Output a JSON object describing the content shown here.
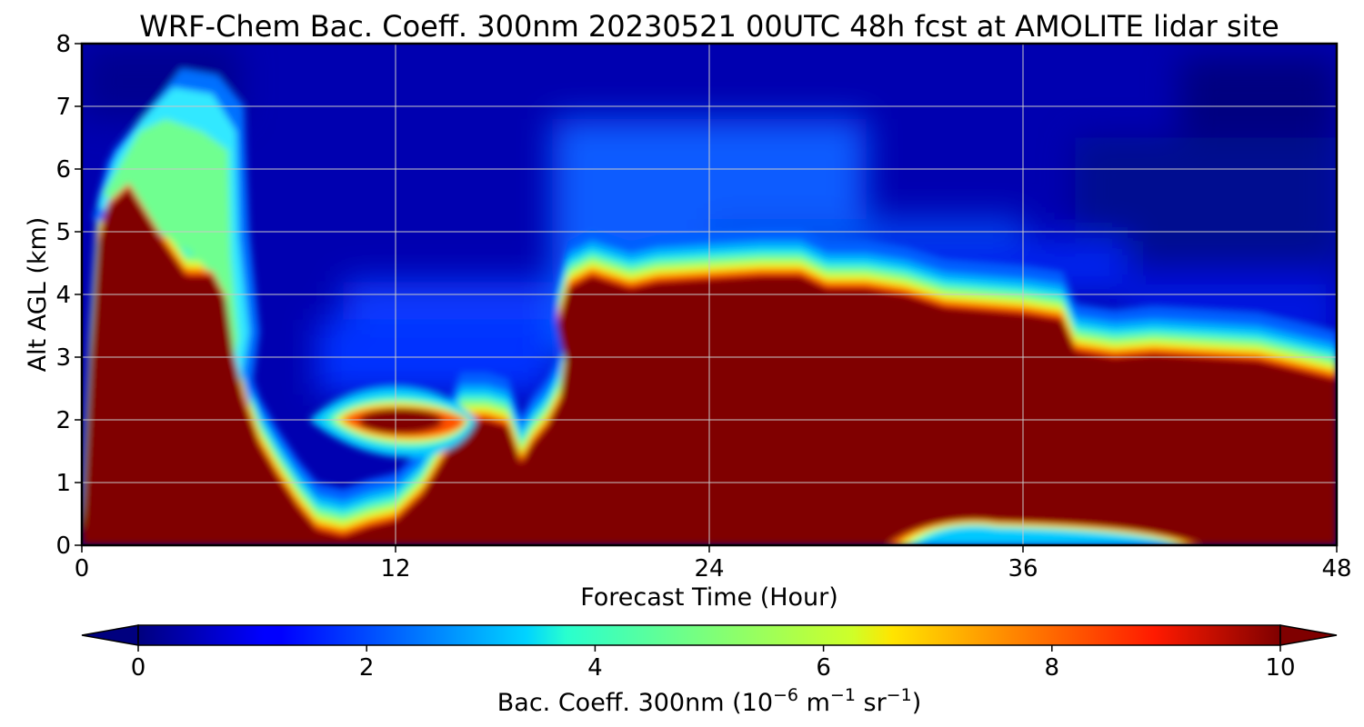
{
  "chart_data": {
    "type": "heatmap",
    "title": "WRF-Chem Bac. Coeff. 300nm  20230521 00UTC 48h fcst at AMOLITE lidar site",
    "xlabel": "Forecast Time (Hour)",
    "ylabel": "Alt AGL (km)",
    "xlim": [
      0,
      48
    ],
    "ylim": [
      0,
      8
    ],
    "x_ticks": [
      "0",
      "12",
      "24",
      "36",
      "48"
    ],
    "y_ticks": [
      "0",
      "1",
      "2",
      "3",
      "4",
      "5",
      "6",
      "7",
      "8"
    ],
    "grid": true,
    "colorbar": {
      "label_main": "Bac. Coeff. 300nm  (10",
      "label_exp1": "−6",
      "label_mid": " m",
      "label_exp2": "−1",
      "label_mid2": " sr",
      "label_exp3": "−1",
      "label_end": ")",
      "range": [
        0,
        10
      ],
      "ticks": [
        "0",
        "2",
        "4",
        "6",
        "8",
        "10"
      ],
      "colormap": "jet",
      "extend": "both"
    },
    "layers": [
      {
        "name": "surface aerosol layer (≥10)",
        "top_km": [
          [
            0,
            0.1
          ],
          [
            0.3,
            2.8
          ],
          [
            0.6,
            4.8
          ],
          [
            1,
            5.4
          ],
          [
            1.8,
            5.7
          ],
          [
            3,
            4.9
          ],
          [
            4,
            4.3
          ],
          [
            5,
            4.3
          ],
          [
            5.5,
            3.9
          ],
          [
            5.8,
            3.0
          ],
          [
            6.2,
            2.3
          ],
          [
            6.8,
            1.6
          ],
          [
            7.5,
            1.1
          ],
          [
            8.3,
            0.6
          ],
          [
            9,
            0.25
          ],
          [
            10,
            0.15
          ],
          [
            11,
            0.3
          ],
          [
            12,
            0.4
          ],
          [
            13,
            0.8
          ],
          [
            14,
            1.5
          ],
          [
            14.5,
            2.0
          ],
          [
            15.5,
            2.0
          ],
          [
            16.3,
            1.9
          ],
          [
            16.8,
            1.3
          ],
          [
            17.2,
            1.6
          ],
          [
            17.8,
            1.9
          ],
          [
            18.3,
            2.3
          ],
          [
            18.5,
            2.9
          ],
          [
            18.2,
            3.5
          ],
          [
            18.6,
            4.1
          ],
          [
            19.5,
            4.3
          ],
          [
            21,
            4.1
          ],
          [
            22,
            4.2
          ],
          [
            24,
            4.25
          ],
          [
            26,
            4.3
          ],
          [
            27.5,
            4.3
          ],
          [
            28.5,
            4.1
          ],
          [
            30,
            4.1
          ],
          [
            31.5,
            4.0
          ],
          [
            33,
            3.8
          ],
          [
            36,
            3.7
          ],
          [
            37.5,
            3.6
          ],
          [
            38,
            3.1
          ],
          [
            39.5,
            3.0
          ],
          [
            41,
            3.05
          ],
          [
            43,
            3.0
          ],
          [
            45,
            2.95
          ],
          [
            46.5,
            2.8
          ],
          [
            48,
            2.65
          ]
        ]
      }
    ],
    "features": [
      {
        "desc": "elevated plume",
        "x_range": [
          10.5,
          14
        ],
        "y_range": [
          1.8,
          2.2
        ],
        "value": 10
      },
      {
        "desc": "clean pocket near surface",
        "x_range": [
          31,
          42
        ],
        "y_range": [
          0,
          0.35
        ],
        "value": 4
      },
      {
        "desc": "aloft moderate plume",
        "x_range": [
          0.5,
          7
        ],
        "y_range": [
          5,
          7.3
        ],
        "value": 4
      }
    ]
  }
}
